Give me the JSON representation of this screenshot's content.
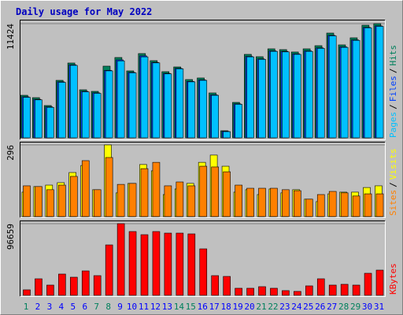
{
  "title": "Daily usage for May 2022",
  "legend_separator": "/",
  "chart_data": [
    {
      "type": "bar",
      "ylim": [
        0,
        11424
      ],
      "yticks": [
        11424
      ],
      "series": [
        {
          "name": "Hits",
          "color": "#00805c",
          "values": [
            4254,
            4018,
            3230,
            5751,
            7485,
            4806,
            4648,
            7170,
            8036,
            6697,
            8430,
            7721,
            6618,
            7091,
            5830,
            5988,
            4491,
            709,
            3545,
            8351,
            8115,
            8903,
            8824,
            8588,
            8903,
            9218,
            10479,
            9297,
            10006,
            11266,
            11424
          ]
        },
        {
          "name": "Files",
          "color": "#0040ff",
          "values": [
            4100,
            3850,
            3100,
            5600,
            7300,
            4650,
            4500,
            6750,
            7800,
            6550,
            8200,
            7550,
            6450,
            6950,
            5650,
            5800,
            4300,
            650,
            3400,
            8150,
            7900,
            8700,
            8650,
            8400,
            8700,
            9000,
            10250,
            9100,
            9800,
            11050,
            11200
          ]
        },
        {
          "name": "Pages",
          "color": "#00c0ff",
          "values": [
            4050,
            3800,
            3050,
            5550,
            7250,
            4600,
            4450,
            6700,
            7700,
            6500,
            8100,
            7500,
            6400,
            6900,
            5600,
            5750,
            4250,
            620,
            3350,
            8100,
            7850,
            8650,
            8600,
            8350,
            8650,
            8950,
            10200,
            9050,
            9750,
            11000,
            11150
          ]
        }
      ]
    },
    {
      "type": "bar",
      "ylim": [
        0,
        296
      ],
      "yticks": [
        296
      ],
      "series": [
        {
          "name": "Visits",
          "color": "#ffff00",
          "values": [
            101,
            124,
            130,
            140,
            182,
            211,
            111,
            296,
            98,
            137,
            215,
            189,
            91,
            114,
            137,
            224,
            254,
            208,
            101,
            111,
            91,
            114,
            98,
            111,
            72,
            62,
            94,
            101,
            101,
            120,
            127
          ]
        },
        {
          "name": "Sites",
          "color": "#ff8000",
          "values": [
            127,
            124,
            111,
            130,
            166,
            231,
            111,
            244,
            133,
            137,
            198,
            224,
            127,
            143,
            127,
            208,
            205,
            185,
            130,
            117,
            117,
            117,
            111,
            107,
            72,
            91,
            104,
            98,
            85,
            94,
            94
          ]
        }
      ]
    },
    {
      "type": "bar",
      "ylim": [
        0,
        96659
      ],
      "yticks": [
        96659
      ],
      "categories": [
        "1",
        "2",
        "3",
        "4",
        "5",
        "6",
        "7",
        "8",
        "9",
        "10",
        "11",
        "12",
        "13",
        "14",
        "15",
        "16",
        "17",
        "18",
        "19",
        "20",
        "21",
        "22",
        "23",
        "24",
        "25",
        "26",
        "27",
        "28",
        "29",
        "30",
        "31"
      ],
      "category_colors": [
        "#00805c",
        "#0000ff",
        "#0000ff",
        "#0000ff",
        "#0000ff",
        "#0000ff",
        "#00805c",
        "#00805c",
        "#0000ff",
        "#0000ff",
        "#0000ff",
        "#0000ff",
        "#0000ff",
        "#00805c",
        "#00805c",
        "#0000ff",
        "#0000ff",
        "#0000ff",
        "#0000ff",
        "#0000ff",
        "#00805c",
        "#00805c",
        "#0000ff",
        "#0000ff",
        "#0000ff",
        "#0000ff",
        "#0000ff",
        "#00805c",
        "#00805c",
        "#0000ff",
        "#0000ff"
      ],
      "series": [
        {
          "name": "KBytes",
          "color": "#ff0000",
          "values": [
            7435,
            22306,
            13808,
            28679,
            24430,
            32927,
            26555,
            67980,
            96659,
            86036,
            81787,
            86036,
            83912,
            83912,
            82850,
            62668,
            26555,
            25492,
            9560,
            9560,
            11684,
            9560,
            6373,
            5311,
            12746,
            22306,
            13808,
            14870,
            13808,
            29741,
            33990
          ]
        }
      ]
    }
  ]
}
